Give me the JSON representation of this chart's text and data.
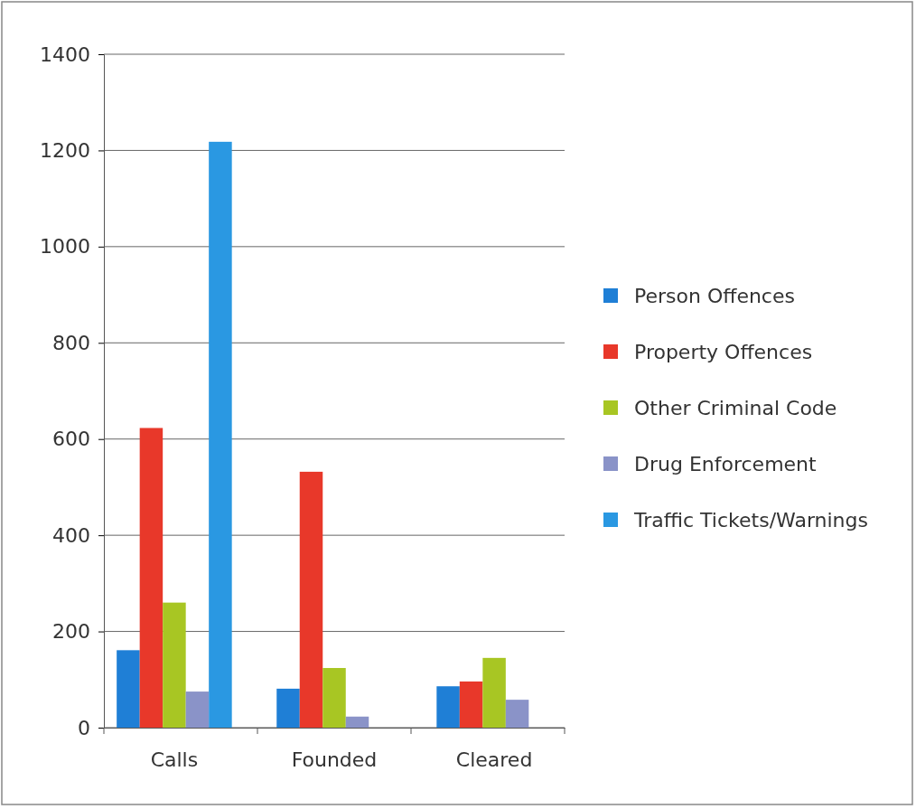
{
  "chart_data": {
    "type": "bar",
    "categories": [
      "Calls",
      "Founded",
      "Cleared"
    ],
    "series": [
      {
        "name": "Person Offences",
        "color": "#1f7fd6",
        "values": [
          161,
          81,
          86
        ]
      },
      {
        "name": "Property Offences",
        "color": "#e8382a",
        "values": [
          623,
          532,
          96
        ]
      },
      {
        "name": "Other Criminal Code",
        "color": "#a8c623",
        "values": [
          260,
          124,
          145
        ]
      },
      {
        "name": "Drug Enforcement",
        "color": "#8a93c8",
        "values": [
          75,
          23,
          58
        ]
      },
      {
        "name": "Traffic Tickets/Warnings",
        "color": "#2a98e2",
        "values": [
          1218,
          null,
          null
        ]
      }
    ],
    "ylim": [
      0,
      1400
    ],
    "yticks": [
      0,
      200,
      400,
      600,
      800,
      1000,
      1200,
      1400
    ],
    "grid": "y",
    "legend": "right"
  }
}
